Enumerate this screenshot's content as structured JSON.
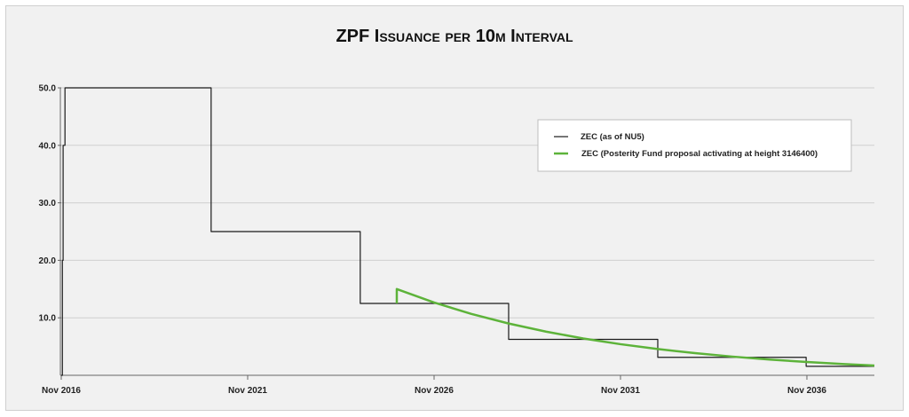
{
  "chart_data": {
    "type": "line",
    "title": "ZPF Issuance per 10m Interval",
    "xlabel": "",
    "ylabel": "",
    "xlim": [
      2016.83,
      2038.64
    ],
    "ylim": [
      0,
      50
    ],
    "grid": true,
    "x_ticks": [
      {
        "value": 2016.83,
        "label": "Nov 2016"
      },
      {
        "value": 2021.83,
        "label": "Nov 2021"
      },
      {
        "value": 2026.83,
        "label": "Nov 2026"
      },
      {
        "value": 2031.83,
        "label": "Nov 2031"
      },
      {
        "value": 2036.83,
        "label": "Nov 2036"
      }
    ],
    "y_ticks": [
      {
        "value": 10,
        "label": "10.0"
      },
      {
        "value": 20,
        "label": "20.0"
      },
      {
        "value": 30,
        "label": "30.0"
      },
      {
        "value": 40,
        "label": "40.0"
      },
      {
        "value": 50,
        "label": "50.0"
      }
    ],
    "legend_position": "top-right",
    "series": [
      {
        "name": "ZEC (as of NU5)",
        "color": "#1a1a1a",
        "step": true,
        "x": [
          2016.83,
          2016.86,
          2016.88,
          2016.93,
          2020.85,
          2024.85,
          2028.83,
          2032.83,
          2036.81,
          2038.64
        ],
        "y": [
          0,
          20,
          40,
          50,
          25,
          12.5,
          6.25,
          3.125,
          1.5625,
          1.5625
        ]
      },
      {
        "name": "ZEC (Posterity Fund proposal activating at height 3146400)",
        "color": "#5db33a",
        "step": false,
        "x": [
          2025.83,
          2025.83,
          2026.83,
          2027.83,
          2028.83,
          2029.83,
          2030.83,
          2031.83,
          2032.83,
          2033.83,
          2034.83,
          2035.83,
          2036.83,
          2037.83,
          2038.64
        ],
        "y": [
          12.5,
          15.0,
          12.66,
          10.68,
          9.01,
          7.6,
          6.41,
          5.41,
          4.57,
          3.85,
          3.25,
          2.74,
          2.31,
          1.95,
          1.7
        ]
      }
    ]
  }
}
